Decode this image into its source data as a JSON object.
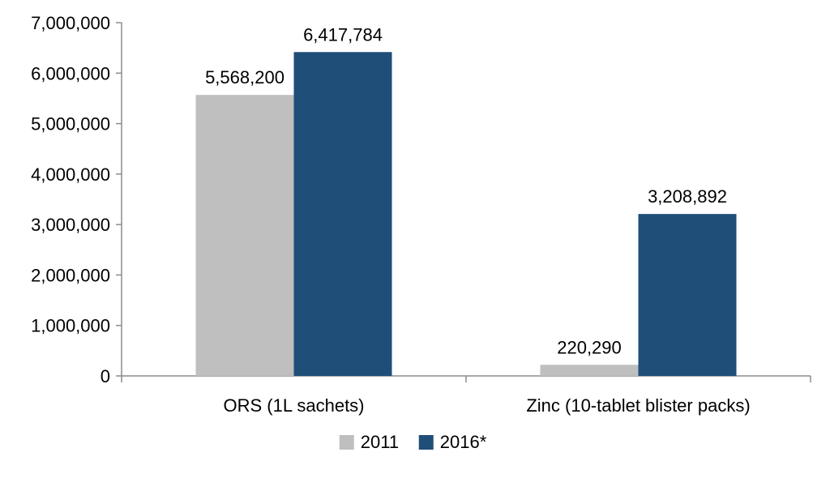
{
  "chart_data": {
    "type": "bar",
    "title": "",
    "xlabel": "",
    "ylabel": "",
    "categories": [
      "ORS (1L sachets)",
      "Zinc (10-tablet blister packs)"
    ],
    "series": [
      {
        "name": "2011",
        "values": [
          5568200,
          220290
        ],
        "labels": [
          "5,568,200",
          "220,290"
        ],
        "color": "#bfbfbf"
      },
      {
        "name": "2016*",
        "values": [
          6417784,
          3208892
        ],
        "labels": [
          "6,417,784",
          "3,208,892"
        ],
        "color": "#1f4e79"
      }
    ],
    "ylim": [
      0,
      7000000
    ],
    "yticks": [
      0,
      1000000,
      2000000,
      3000000,
      4000000,
      5000000,
      6000000,
      7000000
    ],
    "ytick_labels": [
      "0",
      "1,000,000",
      "2,000,000",
      "3,000,000",
      "4,000,000",
      "5,000,000",
      "6,000,000",
      "7,000,000"
    ],
    "grid": false,
    "legend_position": "bottom"
  }
}
